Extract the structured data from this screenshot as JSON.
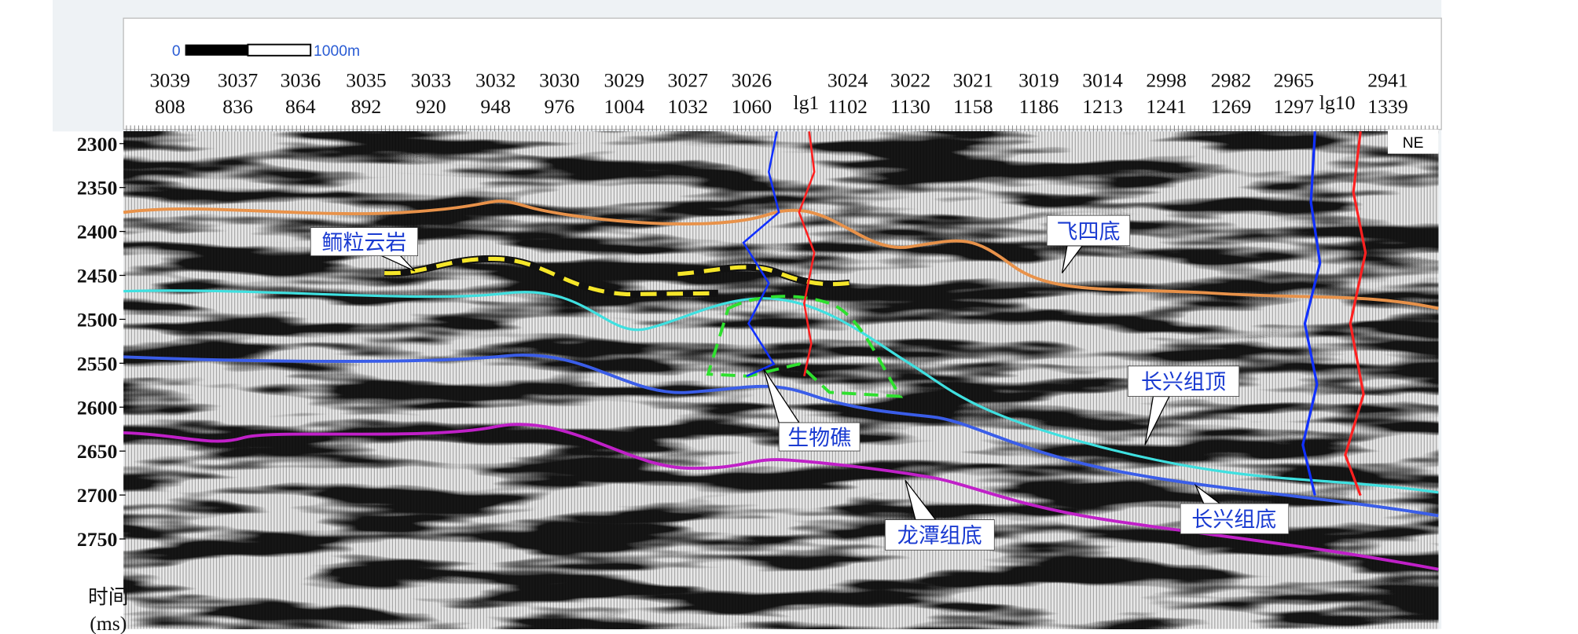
{
  "scale_bar": {
    "start": "0",
    "end": "1000m"
  },
  "traces": [
    {
      "line": "3039",
      "cdp": "808"
    },
    {
      "line": "3037",
      "cdp": "836"
    },
    {
      "line": "3036",
      "cdp": "864"
    },
    {
      "line": "3035",
      "cdp": "892"
    },
    {
      "line": "3033",
      "cdp": "920"
    },
    {
      "line": "3032",
      "cdp": "948"
    },
    {
      "line": "3030",
      "cdp": "976"
    },
    {
      "line": "3029",
      "cdp": "1004"
    },
    {
      "line": "3027",
      "cdp": "1032"
    },
    {
      "line": "3026",
      "cdp": "1060"
    },
    {
      "line": "3024",
      "cdp": "1102"
    },
    {
      "line": "3022",
      "cdp": "1130"
    },
    {
      "line": "3021",
      "cdp": "1158"
    },
    {
      "line": "3019",
      "cdp": "1186"
    },
    {
      "line": "3014",
      "cdp": "1213"
    },
    {
      "line": "2998",
      "cdp": "1241"
    },
    {
      "line": "2982",
      "cdp": "1269"
    },
    {
      "line": "2965",
      "cdp": "1297"
    },
    {
      "line": "2941",
      "cdp": "1339"
    }
  ],
  "wells": [
    "lg1",
    "lg10"
  ],
  "orientation": "NE",
  "y_axis": {
    "ticks": [
      2300,
      2350,
      2400,
      2450,
      2500,
      2550,
      2600,
      2650,
      2700,
      2750
    ],
    "title": [
      "时间",
      "(ms)"
    ]
  },
  "annotations": {
    "oolitic_dolomite": "鲕粒云岩",
    "feisi_base": "飞四底",
    "changxing_top": "长兴组顶",
    "reef": "生物礁",
    "longtan_base": "龙潭组底",
    "changxing_base": "长兴组底"
  }
}
